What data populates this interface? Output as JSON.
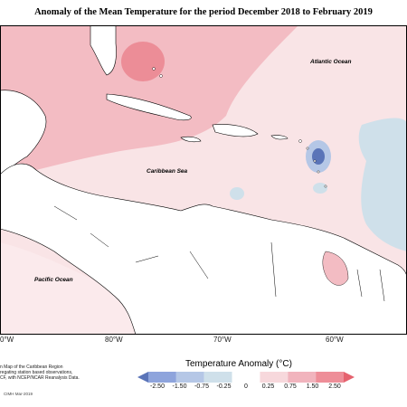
{
  "title": "Anomaly of the Mean Temperature for the period December 2018 to February 2019",
  "map": {
    "labels": {
      "atlantic": "Atlantic Ocean",
      "caribbean": "Caribbean Sea",
      "pacific": "Pacific Ocean"
    },
    "lon_ticks": [
      "0°W",
      "80°W",
      "70°W",
      "60°W"
    ]
  },
  "legend": {
    "title": "Temperature Anomaly (°C)",
    "labels": [
      "-2.50",
      "-1.50",
      "-0.75",
      "-0.25",
      "0",
      "0.25",
      "0.75",
      "1.50",
      "2.50"
    ],
    "colors": [
      "#5a74b8",
      "#8ea4dc",
      "#b5c7e6",
      "#cfe0ea",
      "#ffffff",
      "#f7d8dc",
      "#f1b4bd",
      "#ee8e98",
      "#e5626e"
    ]
  },
  "credits": {
    "lines": [
      "n Map of the Caribbean Region",
      "regating station based observations,",
      "CF, with NCEP/NCAR Reanalysis Data."
    ],
    "footer": "CIMH Mar-2019"
  }
}
